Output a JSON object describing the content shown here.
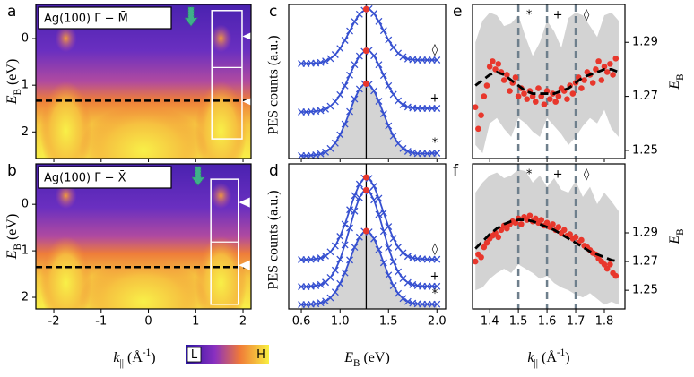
{
  "chart_data": [
    {
      "panel": "a",
      "type": "heatmap",
      "label": "Ag(100) Γ̄ − M̄",
      "xlim": [
        -2.38,
        2.17
      ],
      "xticks": [
        -2,
        -1,
        0,
        1,
        2
      ],
      "ylim": [
        2.57,
        -0.73
      ],
      "yticks": [
        0,
        1,
        2
      ],
      "y_label": [
        {
          "text": "E",
          "italic": true
        },
        {
          "text": "B",
          "sub": true
        },
        {
          "text": " (eV)"
        }
      ],
      "dashed_line": 1.33,
      "box": {
        "x": [
          1.34,
          1.98
        ],
        "y": [
          -0.6,
          0.62,
          2.15
        ]
      },
      "arrows": [
        -0.05,
        1.35
      ],
      "green_arrow": 0.9
    },
    {
      "panel": "b",
      "type": "heatmap",
      "label": "Ag(100) Γ̄ − X̄",
      "xlim": [
        -2.38,
        2.17
      ],
      "xticks": [
        -2,
        -1,
        0,
        1,
        2
      ],
      "ylim": [
        2.25,
        -0.87
      ],
      "yticks": [
        0,
        1,
        2
      ],
      "y_label": [
        {
          "text": "E",
          "italic": true
        },
        {
          "text": "B",
          "sub": true
        },
        {
          "text": " (eV)"
        }
      ],
      "x_label": [
        {
          "text": "k",
          "italic": true
        },
        {
          "text": "||",
          "sub": true
        },
        {
          "text": " (Å"
        },
        {
          "text": "-1",
          "sup": true
        },
        {
          "text": ")"
        }
      ],
      "colorbar": {
        "low": "L",
        "high": "H"
      },
      "dashed_line": 1.35,
      "box": {
        "x": [
          1.32,
          1.9
        ],
        "y": [
          -0.54,
          0.81,
          2.15
        ]
      },
      "arrows": [
        -0.04,
        1.31
      ],
      "green_arrow": 1.05
    },
    {
      "panel": "c",
      "type": "line",
      "xlim": [
        0.47,
        2.09
      ],
      "xticks": [
        0.6,
        {
          "value": 1,
          "label": "1.0"
        },
        1.5,
        {
          "value": 2,
          "label": "2.0"
        }
      ],
      "ylim": [
        0,
        4.3
      ],
      "y_label": "PES counts (a.u.)",
      "vline": 1.27,
      "peak_color": "#e8372c",
      "x": [
        0.6,
        0.65,
        0.7,
        0.75,
        0.8,
        0.85,
        0.9,
        0.95,
        1.0,
        1.05,
        1.1,
        1.15,
        1.2,
        1.25,
        1.3,
        1.35,
        1.4,
        1.45,
        1.5,
        1.55,
        1.6,
        1.65,
        1.7,
        1.75,
        1.8,
        1.85,
        1.9,
        1.95,
        2.0
      ],
      "series": [
        {
          "name": "*",
          "color": "#3650d0",
          "fill": "#d4d4d4",
          "peak": 2.09,
          "values": [
            0.08,
            0.08,
            0.09,
            0.1,
            0.13,
            0.18,
            0.28,
            0.43,
            0.66,
            0.96,
            1.31,
            1.66,
            1.94,
            2.09,
            2.07,
            1.89,
            1.6,
            1.25,
            0.91,
            0.63,
            0.42,
            0.28,
            0.2,
            0.16,
            0.14,
            0.14,
            0.14,
            0.15,
            0.15
          ]
        },
        {
          "name": "+",
          "color": "#3650d0",
          "peak": 3.01,
          "values": [
            1.3,
            1.3,
            1.31,
            1.32,
            1.34,
            1.38,
            1.46,
            1.59,
            1.78,
            2.03,
            2.33,
            2.62,
            2.86,
            2.99,
            3.02,
            2.87,
            2.62,
            2.32,
            2.03,
            1.79,
            1.61,
            1.5,
            1.44,
            1.41,
            1.4,
            1.4,
            1.4,
            1.4,
            1.4
          ]
        },
        {
          "name": "◊",
          "color": "#3650d0",
          "peak": 4.17,
          "values": [
            2.65,
            2.65,
            2.66,
            2.66,
            2.68,
            2.72,
            2.79,
            2.9,
            3.07,
            3.3,
            3.56,
            3.82,
            4.03,
            4.14,
            4.18,
            4.05,
            3.83,
            3.57,
            3.31,
            3.1,
            2.94,
            2.84,
            2.78,
            2.76,
            2.75,
            2.75,
            2.75,
            2.75,
            2.75
          ]
        }
      ]
    },
    {
      "panel": "d",
      "type": "line",
      "xlim": [
        0.47,
        2.09
      ],
      "xticks": [
        0.6,
        {
          "value": 1,
          "label": "1.0"
        },
        1.5,
        {
          "value": 2,
          "label": "2.0"
        }
      ],
      "ylim": [
        0,
        4.3
      ],
      "y_label": "PES counts (a.u.)",
      "vline": 1.27,
      "peak_color": "#e8372c",
      "x_label": [
        {
          "text": "E",
          "italic": true
        },
        {
          "text": "B",
          "sub": true
        },
        {
          "text": " (eV)"
        }
      ],
      "x": [
        0.6,
        0.65,
        0.7,
        0.75,
        0.8,
        0.85,
        0.9,
        0.95,
        1.0,
        1.05,
        1.1,
        1.15,
        1.2,
        1.25,
        1.3,
        1.35,
        1.4,
        1.45,
        1.5,
        1.55,
        1.6,
        1.65,
        1.7,
        1.75,
        1.8,
        1.85,
        1.9,
        1.95,
        2.0
      ],
      "series": [
        {
          "name": "*",
          "color": "#3650d0",
          "fill": "#d4d4d4",
          "peak": 2.31,
          "values": [
            0.13,
            0.13,
            0.14,
            0.15,
            0.18,
            0.23,
            0.33,
            0.5,
            0.75,
            1.07,
            1.45,
            1.83,
            2.13,
            2.3,
            2.28,
            2.08,
            1.76,
            1.37,
            1.0,
            0.69,
            0.46,
            0.31,
            0.22,
            0.17,
            0.15,
            0.14,
            0.14,
            0.14,
            0.14
          ]
        },
        {
          "name": "+",
          "color": "#3650d0",
          "peak": 3.52,
          "values": [
            0.66,
            0.66,
            0.67,
            0.69,
            0.72,
            0.79,
            0.93,
            1.15,
            1.47,
            1.9,
            2.4,
            2.9,
            3.3,
            3.51,
            3.49,
            3.23,
            2.8,
            2.3,
            1.81,
            1.4,
            1.1,
            0.9,
            0.78,
            0.72,
            0.69,
            0.67,
            0.67,
            0.67,
            0.67
          ]
        },
        {
          "name": "◊",
          "color": "#3650d0",
          "peak": 3.9,
          "values": [
            1.46,
            1.46,
            1.47,
            1.48,
            1.51,
            1.57,
            1.69,
            1.87,
            2.15,
            2.51,
            2.94,
            3.36,
            3.7,
            3.88,
            3.87,
            3.64,
            3.28,
            2.85,
            2.44,
            2.09,
            1.83,
            1.66,
            1.56,
            1.51,
            1.49,
            1.48,
            1.47,
            1.47,
            1.47
          ]
        }
      ]
    },
    {
      "panel": "e",
      "type": "scatter",
      "xlim": [
        1.34,
        1.872
      ],
      "xticks": [
        1.4,
        1.5,
        1.6,
        1.7,
        1.8
      ],
      "ylim": [
        1.247,
        1.304
      ],
      "yticks": [
        1.25,
        1.27,
        1.29
      ],
      "y_label": [
        {
          "text": "E",
          "italic": true
        },
        {
          "text": "B",
          "sub": true
        }
      ],
      "vlines": [
        1.5,
        1.6,
        1.7
      ],
      "vline_labels": [
        "*",
        "+",
        "◊"
      ],
      "color": "#e8372c",
      "x": [
        1.35,
        1.36,
        1.37,
        1.38,
        1.39,
        1.4,
        1.41,
        1.42,
        1.43,
        1.44,
        1.45,
        1.46,
        1.47,
        1.48,
        1.49,
        1.5,
        1.51,
        1.52,
        1.53,
        1.54,
        1.55,
        1.56,
        1.57,
        1.58,
        1.59,
        1.6,
        1.61,
        1.62,
        1.63,
        1.64,
        1.65,
        1.66,
        1.67,
        1.68,
        1.69,
        1.7,
        1.71,
        1.72,
        1.73,
        1.74,
        1.75,
        1.76,
        1.77,
        1.78,
        1.79,
        1.8,
        1.81,
        1.82,
        1.83,
        1.84
      ],
      "values": [
        1.266,
        1.258,
        1.263,
        1.27,
        1.274,
        1.281,
        1.283,
        1.28,
        1.282,
        1.279,
        1.276,
        1.278,
        1.272,
        1.275,
        1.277,
        1.27,
        1.273,
        1.271,
        1.269,
        1.272,
        1.27,
        1.268,
        1.273,
        1.27,
        1.267,
        1.272,
        1.269,
        1.271,
        1.268,
        1.27,
        1.273,
        1.272,
        1.269,
        1.274,
        1.271,
        1.275,
        1.277,
        1.273,
        1.276,
        1.279,
        1.278,
        1.275,
        1.28,
        1.283,
        1.276,
        1.281,
        1.279,
        1.282,
        1.278,
        1.284
      ],
      "band": {
        "x": [
          1.35,
          1.375,
          1.4,
          1.425,
          1.45,
          1.475,
          1.5,
          1.525,
          1.55,
          1.575,
          1.6,
          1.625,
          1.65,
          1.675,
          1.7,
          1.725,
          1.75,
          1.775,
          1.8,
          1.825,
          1.85
        ],
        "upper": [
          1.29,
          1.298,
          1.301,
          1.3,
          1.296,
          1.297,
          1.3,
          1.292,
          1.285,
          1.29,
          1.298,
          1.294,
          1.288,
          1.299,
          1.301,
          1.3,
          1.296,
          1.292,
          1.3,
          1.301,
          1.298
        ],
        "lower": [
          1.252,
          1.249,
          1.26,
          1.262,
          1.258,
          1.255,
          1.262,
          1.26,
          1.257,
          1.255,
          1.262,
          1.259,
          1.256,
          1.252,
          1.255,
          1.259,
          1.262,
          1.26,
          1.265,
          1.258,
          1.255
        ],
        "fit": [
          1.274,
          1.276,
          1.278,
          1.279,
          1.278,
          1.276,
          1.274,
          1.272,
          1.271,
          1.271,
          1.271,
          1.271,
          1.272,
          1.273,
          1.275,
          1.277,
          1.278,
          1.279,
          1.28,
          1.28,
          1.279
        ]
      }
    },
    {
      "panel": "f",
      "type": "scatter",
      "xlim": [
        1.34,
        1.872
      ],
      "xticks": [
        1.4,
        1.5,
        1.6,
        1.7,
        1.8
      ],
      "ylim": [
        1.237,
        1.338
      ],
      "yticks": [
        1.25,
        1.27,
        1.29
      ],
      "y_label": [
        {
          "text": "E",
          "italic": true
        },
        {
          "text": "B",
          "sub": true
        }
      ],
      "x_label": [
        {
          "text": "k",
          "italic": true
        },
        {
          "text": "||",
          "sub": true
        },
        {
          "text": " (Å"
        },
        {
          "text": "-1",
          "sup": true
        },
        {
          "text": ")"
        }
      ],
      "vlines": [
        1.5,
        1.6,
        1.7
      ],
      "vline_labels": [
        "*",
        "+",
        "◊"
      ],
      "color": "#e8372c",
      "x": [
        1.35,
        1.36,
        1.37,
        1.38,
        1.39,
        1.4,
        1.41,
        1.42,
        1.43,
        1.44,
        1.45,
        1.46,
        1.47,
        1.48,
        1.49,
        1.5,
        1.51,
        1.52,
        1.53,
        1.54,
        1.55,
        1.56,
        1.57,
        1.58,
        1.59,
        1.6,
        1.61,
        1.62,
        1.63,
        1.64,
        1.65,
        1.66,
        1.67,
        1.68,
        1.69,
        1.7,
        1.71,
        1.72,
        1.73,
        1.74,
        1.75,
        1.76,
        1.77,
        1.78,
        1.79,
        1.8,
        1.81,
        1.82,
        1.83,
        1.84
      ],
      "values": [
        1.27,
        1.275,
        1.273,
        1.28,
        1.283,
        1.286,
        1.288,
        1.29,
        1.287,
        1.292,
        1.295,
        1.293,
        1.296,
        1.298,
        1.297,
        1.3,
        1.296,
        1.301,
        1.299,
        1.302,
        1.298,
        1.3,
        1.297,
        1.299,
        1.295,
        1.297,
        1.294,
        1.296,
        1.292,
        1.294,
        1.29,
        1.292,
        1.288,
        1.289,
        1.286,
        1.287,
        1.283,
        1.285,
        1.281,
        1.28,
        1.278,
        1.276,
        1.275,
        1.272,
        1.27,
        1.268,
        1.265,
        1.268,
        1.262,
        1.26
      ],
      "band": {
        "x": [
          1.35,
          1.375,
          1.4,
          1.425,
          1.45,
          1.475,
          1.5,
          1.525,
          1.55,
          1.575,
          1.6,
          1.625,
          1.65,
          1.675,
          1.7,
          1.725,
          1.75,
          1.775,
          1.8,
          1.825,
          1.85
        ],
        "upper": [
          1.318,
          1.325,
          1.33,
          1.332,
          1.328,
          1.33,
          1.334,
          1.333,
          1.325,
          1.33,
          1.322,
          1.328,
          1.32,
          1.318,
          1.326,
          1.315,
          1.322,
          1.31,
          1.318,
          1.312,
          1.305
        ],
        "lower": [
          1.25,
          1.252,
          1.258,
          1.262,
          1.265,
          1.262,
          1.268,
          1.265,
          1.262,
          1.258,
          1.26,
          1.255,
          1.252,
          1.25,
          1.247,
          1.245,
          1.248,
          1.244,
          1.24,
          1.242,
          1.24
        ],
        "fit": [
          1.279,
          1.284,
          1.289,
          1.293,
          1.296,
          1.298,
          1.299,
          1.299,
          1.298,
          1.296,
          1.294,
          1.292,
          1.289,
          1.286,
          1.283,
          1.28,
          1.277,
          1.275,
          1.273,
          1.271,
          1.27
        ]
      }
    }
  ]
}
